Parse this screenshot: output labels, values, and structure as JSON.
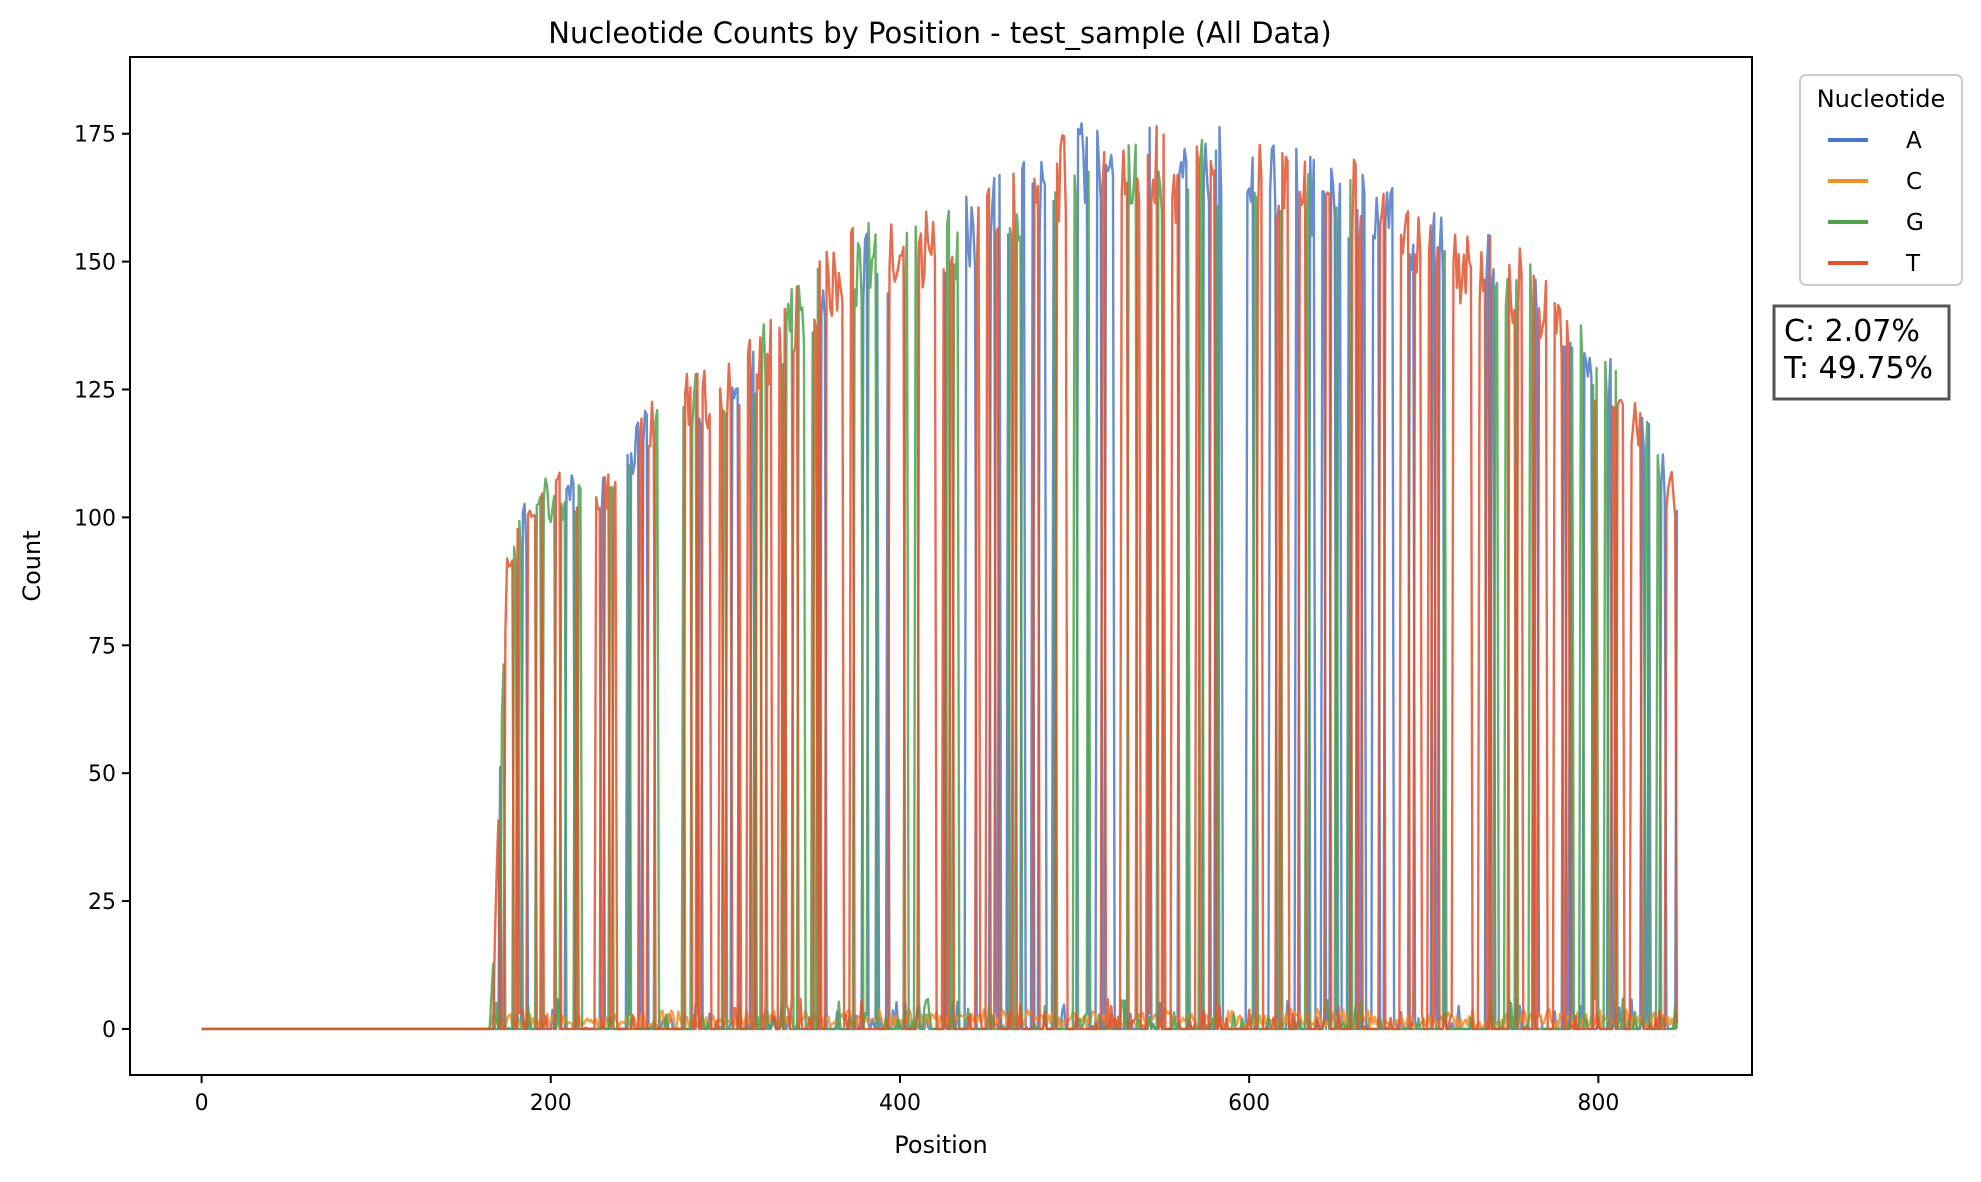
{
  "chart_data": {
    "type": "line",
    "title": "Nucleotide Counts by Position - test_sample (All Data)",
    "xlabel": "Position",
    "ylabel": "Count",
    "xlim": [
      -41,
      888
    ],
    "ylim": [
      -9,
      190
    ],
    "xticks": [
      0,
      200,
      400,
      600,
      800
    ],
    "yticks": [
      0,
      25,
      50,
      75,
      100,
      125,
      150,
      175
    ],
    "grid": false,
    "legend": {
      "title": "Nucleotide",
      "placement": "outside-top-right"
    },
    "series": [
      {
        "name": "A",
        "color": "#4c78c8"
      },
      {
        "name": "C",
        "color": "#f28e2b"
      },
      {
        "name": "G",
        "color": "#4ea24e"
      },
      {
        "name": "T",
        "color": "#e1522d"
      }
    ],
    "envelope": {
      "x": [
        0,
        165,
        168,
        175,
        185,
        200,
        215,
        230,
        250,
        265,
        285,
        300,
        320,
        340,
        360,
        380,
        400,
        420,
        440,
        460,
        480,
        500,
        520,
        540,
        560,
        580,
        600,
        620,
        640,
        660,
        680,
        700,
        720,
        740,
        760,
        775,
        790,
        800,
        815,
        830,
        845
      ],
      "y": [
        0,
        0,
        20,
        95,
        103,
        109,
        111,
        110,
        120,
        128,
        130,
        130,
        137,
        146,
        154,
        158,
        160,
        161,
        163,
        168,
        172,
        177,
        180,
        178,
        174,
        178,
        176,
        173,
        171,
        170,
        167,
        162,
        157,
        155,
        152,
        145,
        138,
        135,
        128,
        118,
        108
      ]
    },
    "zero_runs": [
      [
        0,
        165
      ],
      [
        218,
        225
      ],
      [
        238,
        243
      ],
      [
        262,
        275
      ],
      [
        292,
        296
      ],
      [
        309,
        312
      ],
      [
        327,
        330
      ],
      [
        346,
        349
      ],
      [
        368,
        371
      ],
      [
        388,
        392
      ],
      [
        405,
        408
      ],
      [
        421,
        424
      ],
      [
        434,
        437
      ],
      [
        446,
        449
      ],
      [
        458,
        461
      ],
      [
        472,
        475
      ],
      [
        484,
        487
      ],
      [
        496,
        499
      ],
      [
        509,
        512
      ],
      [
        523,
        526
      ],
      [
        538,
        541
      ],
      [
        552,
        555
      ],
      [
        566,
        569
      ],
      [
        585,
        598
      ],
      [
        608,
        611
      ],
      [
        623,
        626
      ],
      [
        638,
        641
      ],
      [
        653,
        656
      ],
      [
        667,
        670
      ],
      [
        683,
        686
      ],
      [
        699,
        702
      ],
      [
        713,
        716
      ],
      [
        728,
        731
      ],
      [
        743,
        746
      ],
      [
        757,
        760
      ],
      [
        771,
        774
      ],
      [
        786,
        789
      ],
      [
        800,
        803
      ],
      [
        815,
        818
      ],
      [
        830,
        833
      ]
    ]
  },
  "stats_box": {
    "lines": [
      "C: 2.07%",
      "T: 49.75%"
    ]
  }
}
